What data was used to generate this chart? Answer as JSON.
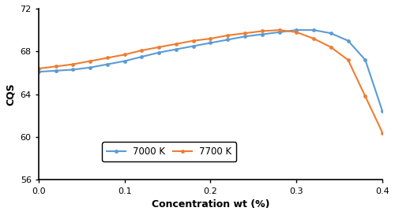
{
  "x": [
    0.0,
    0.02,
    0.04,
    0.06,
    0.08,
    0.1,
    0.12,
    0.14,
    0.16,
    0.18,
    0.2,
    0.22,
    0.24,
    0.26,
    0.28,
    0.3,
    0.32,
    0.34,
    0.36,
    0.38,
    0.4
  ],
  "y_7000": [
    66.1,
    66.2,
    66.3,
    66.5,
    66.8,
    67.1,
    67.5,
    67.9,
    68.2,
    68.5,
    68.8,
    69.1,
    69.4,
    69.6,
    69.8,
    70.0,
    70.0,
    69.7,
    69.0,
    67.2,
    62.4
  ],
  "y_7700": [
    66.4,
    66.6,
    66.8,
    67.1,
    67.4,
    67.7,
    68.1,
    68.4,
    68.7,
    69.0,
    69.2,
    69.5,
    69.7,
    69.9,
    70.0,
    69.8,
    69.2,
    68.4,
    67.2,
    63.8,
    60.4
  ],
  "color_7000": "#5B9BD5",
  "color_7700": "#ED7D31",
  "xlabel": "Concentration wt (%)",
  "ylabel": "CQS",
  "xlim": [
    0,
    0.4
  ],
  "ylim": [
    56,
    72
  ],
  "yticks": [
    56,
    60,
    64,
    68,
    72
  ],
  "xticks": [
    0,
    0.1,
    0.2,
    0.3,
    0.4
  ],
  "label_7000": "7000 K",
  "label_7700": "7700 K"
}
